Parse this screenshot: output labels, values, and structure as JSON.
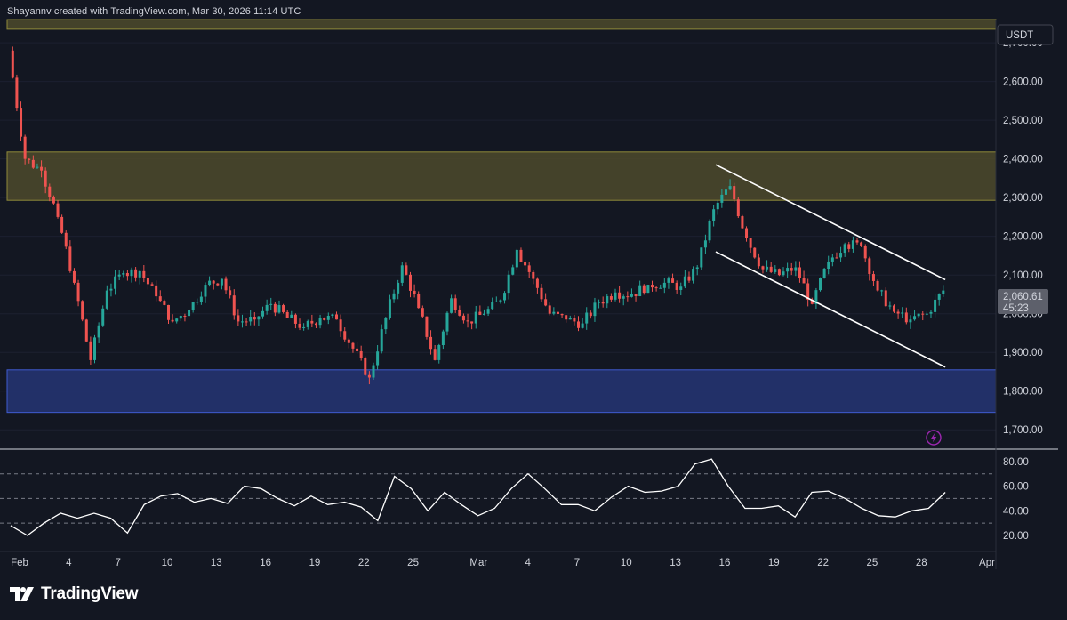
{
  "header": {
    "text": "Shayannv created with TradingView.com, Mar 30, 2026 11:14 UTC"
  },
  "brand": {
    "name": "TradingView"
  },
  "currency_label": "USDT",
  "last_price": {
    "value": "2,060.61",
    "countdown": "45:23"
  },
  "colors": {
    "background": "#131722",
    "up": "#26a69a",
    "down": "#ef5350",
    "supply_zone": "#4e4a2b",
    "demand_zone": "#283a80",
    "rsi_line": "#ffffff",
    "channel": "#ffffff"
  },
  "chart_data": [
    {
      "type": "candlestick",
      "title": "",
      "symbol_quote": "USDT",
      "xaxis": {
        "tick_labels": [
          "Feb",
          "4",
          "7",
          "10",
          "13",
          "16",
          "19",
          "22",
          "25",
          "Mar",
          "4",
          "7",
          "10",
          "13",
          "16",
          "19",
          "22",
          "25",
          "28",
          "Apr"
        ],
        "range": [
          "2026-02-01",
          "2026-04-01"
        ]
      },
      "yaxis": {
        "tick_labels": [
          "2,700.00",
          "2,600.00",
          "2,500.00",
          "2,400.00",
          "2,300.00",
          "2,200.00",
          "2,100.00",
          "2,000.00",
          "1,900.00",
          "1,800.00",
          "1,700.00"
        ],
        "range": [
          1650,
          2760
        ]
      },
      "zones": [
        {
          "name": "",
          "from": 2293,
          "to": 2418,
          "color": "#4e4a2b"
        },
        {
          "name": "",
          "from": 1745,
          "to": 1855,
          "color": "#283a80"
        },
        {
          "name": "",
          "from": 2735,
          "to": 2760,
          "color": "#4e4a2b"
        }
      ],
      "channel_lines": [
        {
          "from": [
            "2026-03-16",
            2385
          ],
          "to": [
            "2026-03-30",
            2088
          ]
        },
        {
          "from": [
            "2026-03-16",
            2160
          ],
          "to": [
            "2026-03-30",
            1862
          ]
        }
      ],
      "closes": [
        [
          "2026-02-01",
          2680
        ],
        [
          "2026-02-02",
          2400
        ],
        [
          "2026-02-03",
          2370
        ],
        [
          "2026-02-04",
          2250
        ],
        [
          "2026-02-05",
          2080
        ],
        [
          "2026-02-06",
          1880
        ],
        [
          "2026-02-07",
          2060
        ],
        [
          "2026-02-08",
          2105
        ],
        [
          "2026-02-09",
          2110
        ],
        [
          "2026-02-10",
          2045
        ],
        [
          "2026-02-11",
          1980
        ],
        [
          "2026-02-12",
          2010
        ],
        [
          "2026-02-13",
          2075
        ],
        [
          "2026-02-14",
          2090
        ],
        [
          "2026-02-15",
          1980
        ],
        [
          "2026-02-16",
          1985
        ],
        [
          "2026-02-17",
          2025
        ],
        [
          "2026-02-18",
          1990
        ],
        [
          "2026-02-19",
          1965
        ],
        [
          "2026-02-20",
          1990
        ],
        [
          "2026-02-21",
          1985
        ],
        [
          "2026-02-22",
          1910
        ],
        [
          "2026-02-23",
          1835
        ],
        [
          "2026-02-24",
          1990
        ],
        [
          "2026-02-25",
          2125
        ],
        [
          "2026-02-26",
          2015
        ],
        [
          "2026-02-27",
          1880
        ],
        [
          "2026-02-28",
          2040
        ],
        [
          "2026-03-01",
          1980
        ],
        [
          "2026-03-02",
          2000
        ],
        [
          "2026-03-03",
          2035
        ],
        [
          "2026-03-04",
          2165
        ],
        [
          "2026-03-05",
          2090
        ],
        [
          "2026-03-06",
          2000
        ],
        [
          "2026-03-07",
          1985
        ],
        [
          "2026-03-08",
          1975
        ],
        [
          "2026-03-09",
          2030
        ],
        [
          "2026-03-10",
          2055
        ],
        [
          "2026-03-11",
          2050
        ],
        [
          "2026-03-12",
          2075
        ],
        [
          "2026-03-13",
          2080
        ],
        [
          "2026-03-14",
          2070
        ],
        [
          "2026-03-15",
          2120
        ],
        [
          "2026-03-16",
          2270
        ],
        [
          "2026-03-17",
          2330
        ],
        [
          "2026-03-18",
          2195
        ],
        [
          "2026-03-19",
          2115
        ],
        [
          "2026-03-20",
          2100
        ],
        [
          "2026-03-21",
          2120
        ],
        [
          "2026-03-22",
          2025
        ],
        [
          "2026-03-23",
          2135
        ],
        [
          "2026-03-24",
          2180
        ],
        [
          "2026-03-25",
          2175
        ],
        [
          "2026-03-26",
          2060
        ],
        [
          "2026-03-27",
          2005
        ],
        [
          "2026-03-28",
          1985
        ],
        [
          "2026-03-29",
          2000
        ],
        [
          "2026-03-30",
          2060
        ]
      ]
    },
    {
      "type": "line",
      "title": "",
      "yaxis": {
        "tick_labels": [
          "80.00",
          "60.00",
          "40.00",
          "20.00"
        ],
        "range": [
          7,
          90
        ]
      },
      "levels": [
        70,
        50,
        30
      ],
      "series": [
        {
          "values": [
            28,
            20,
            30,
            38,
            34,
            38,
            34,
            22,
            45,
            52,
            54,
            47,
            50,
            46,
            60,
            58,
            50,
            44,
            52,
            45,
            47,
            43,
            32,
            68,
            58,
            40,
            55,
            45,
            36,
            42,
            58,
            70,
            58,
            45,
            45,
            40,
            51,
            60,
            55,
            56,
            60,
            78,
            82,
            60,
            42,
            42,
            44,
            35,
            55,
            56,
            50,
            42,
            36,
            35,
            40,
            42,
            55
          ]
        }
      ]
    }
  ]
}
